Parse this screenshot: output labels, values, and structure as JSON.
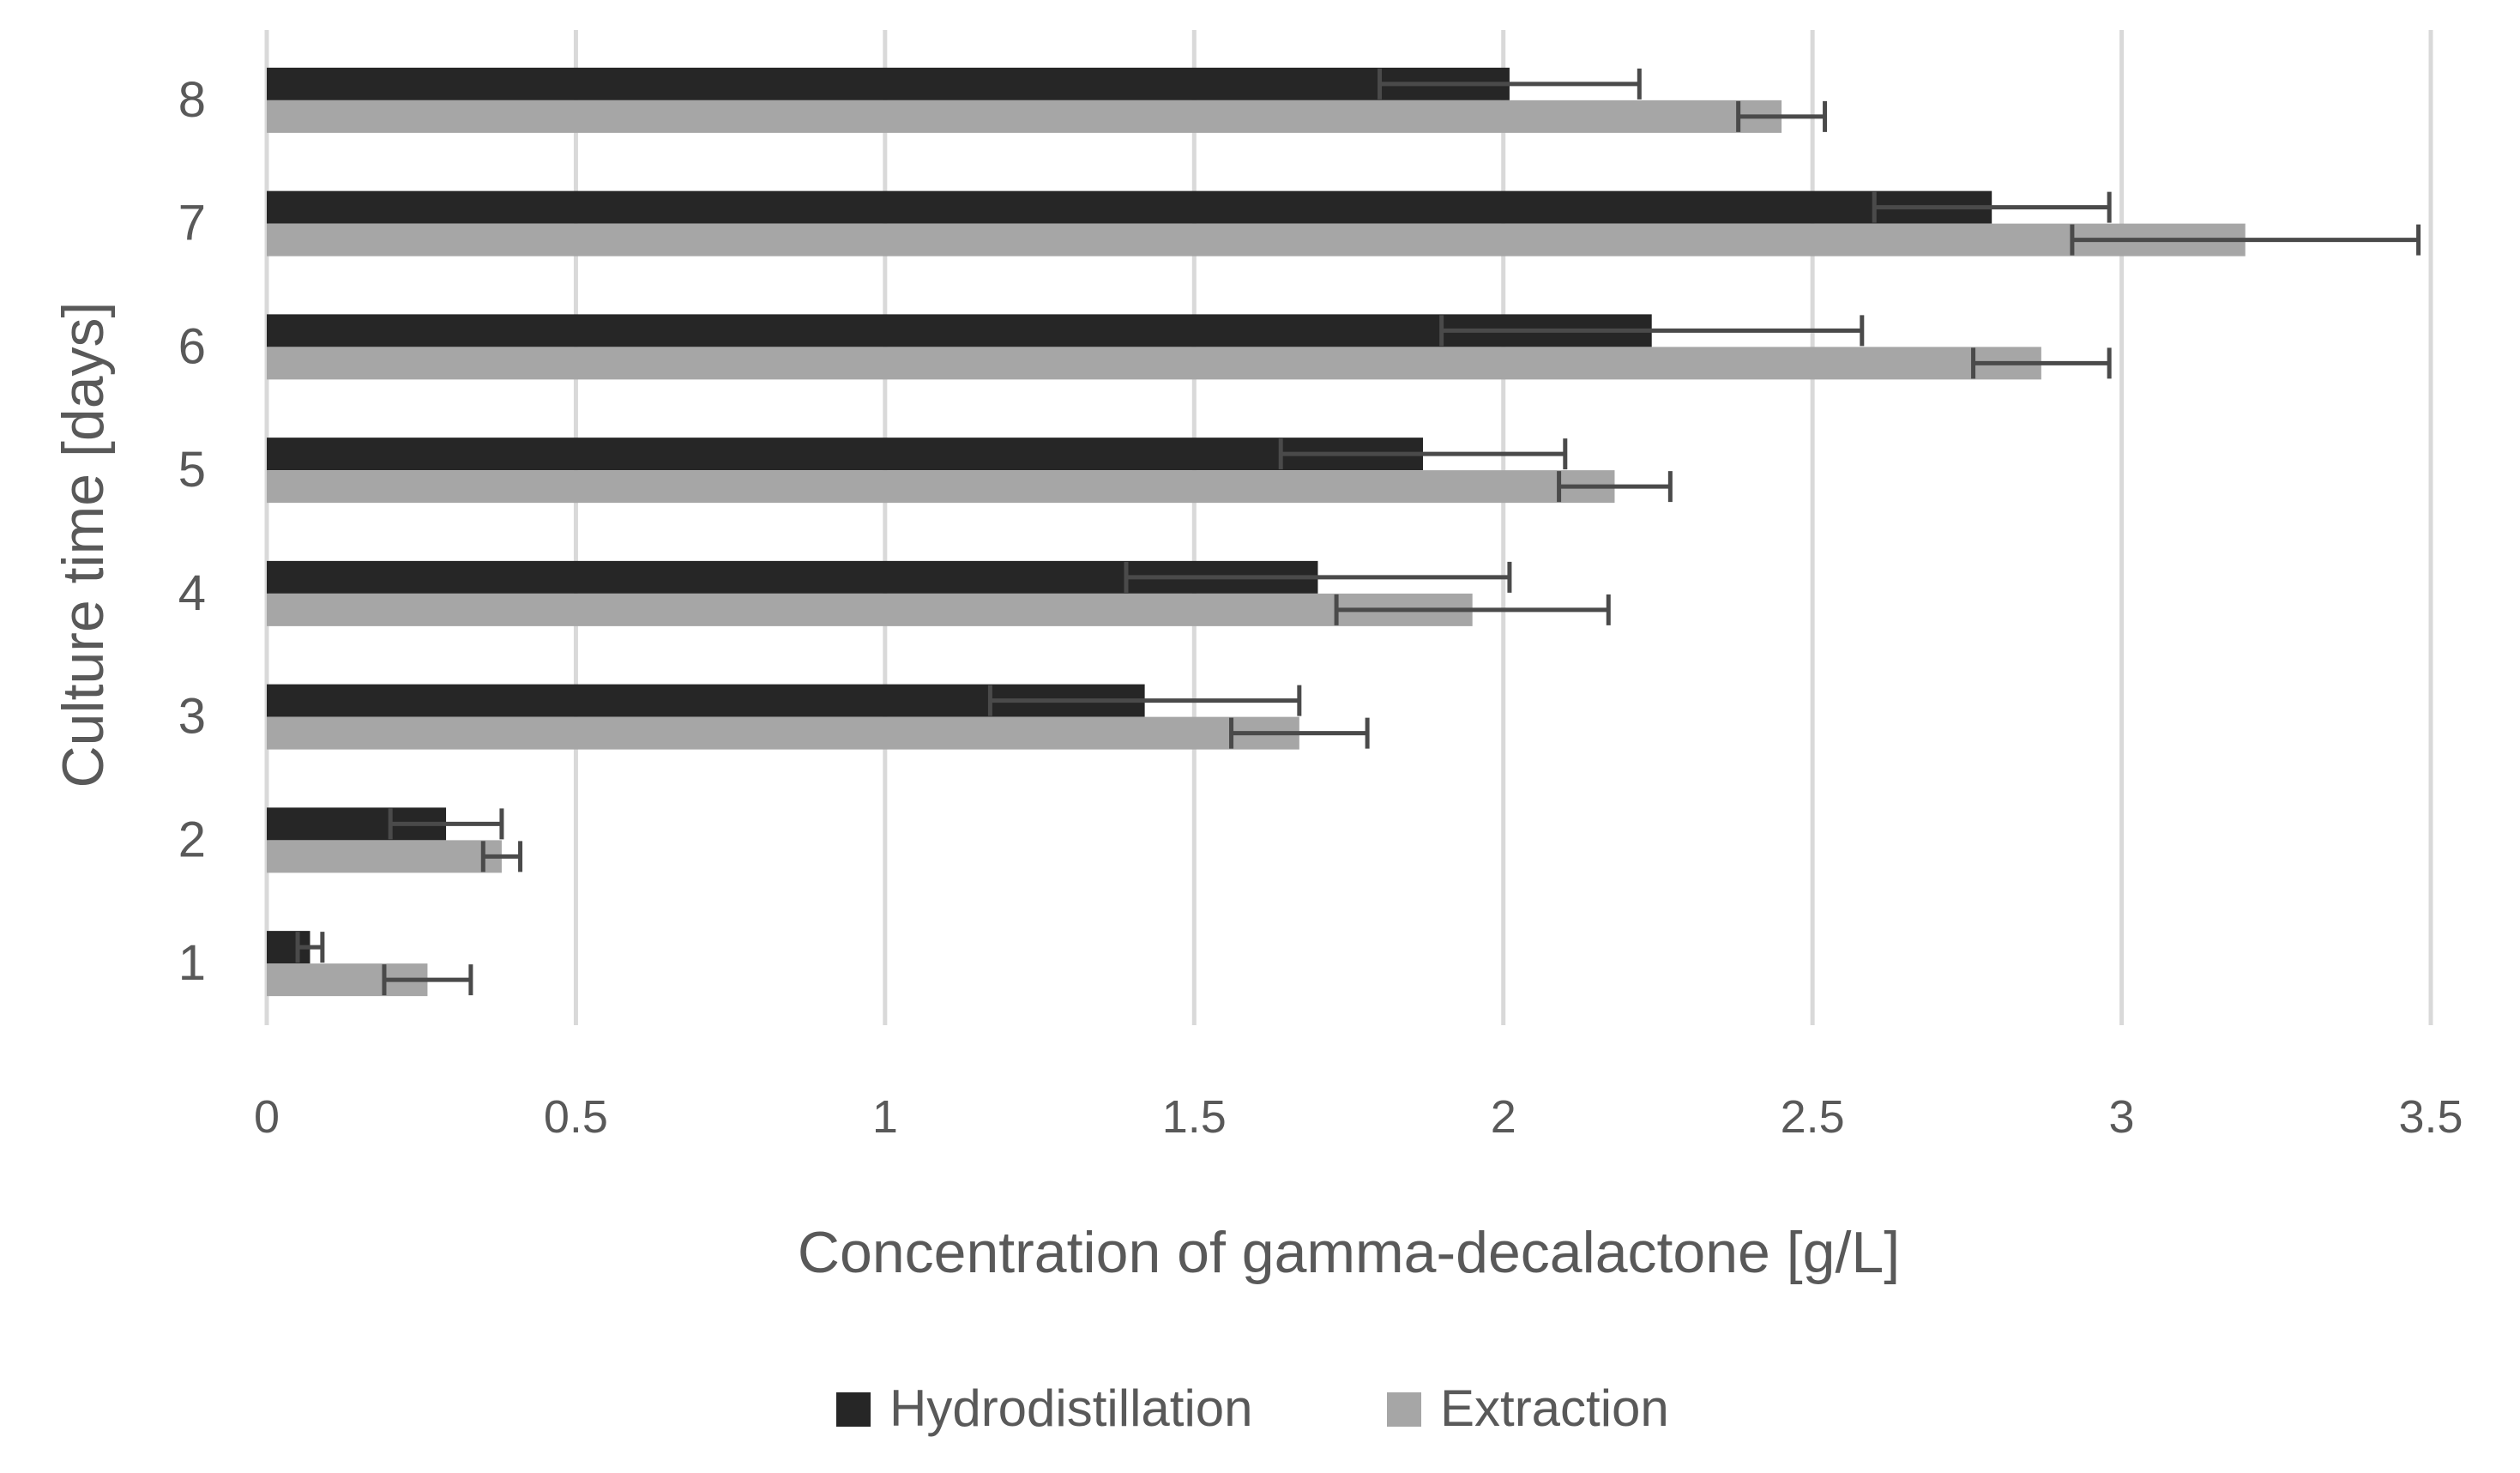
{
  "chart_data": {
    "type": "bar",
    "orientation": "horizontal",
    "title": "",
    "xlabel": "Concentration of gamma-decalactone [g/L]",
    "ylabel": "Culture time [days]",
    "xlim": [
      0,
      3.5
    ],
    "xticks": [
      "0",
      "0.5",
      "1",
      "1.5",
      "2",
      "2.5",
      "3",
      "3.5"
    ],
    "xtick_values": [
      0,
      0.5,
      1,
      1.5,
      2,
      2.5,
      3,
      3.5
    ],
    "categories": [
      "1",
      "2",
      "3",
      "4",
      "5",
      "6",
      "7",
      "8"
    ],
    "grid": "vertical",
    "legend_position": "bottom",
    "series": [
      {
        "name": "Hydrodistillation",
        "color": "#262626",
        "values": [
          0.07,
          0.29,
          1.42,
          1.7,
          1.87,
          2.24,
          2.79,
          2.01
        ],
        "errors": [
          0.02,
          0.09,
          0.25,
          0.31,
          0.23,
          0.34,
          0.19,
          0.21
        ]
      },
      {
        "name": "Extraction",
        "color": "#a6a6a6",
        "values": [
          0.26,
          0.38,
          1.67,
          1.95,
          2.18,
          2.87,
          3.2,
          2.45
        ],
        "errors": [
          0.07,
          0.03,
          0.11,
          0.22,
          0.09,
          0.11,
          0.28,
          0.07
        ]
      }
    ]
  }
}
